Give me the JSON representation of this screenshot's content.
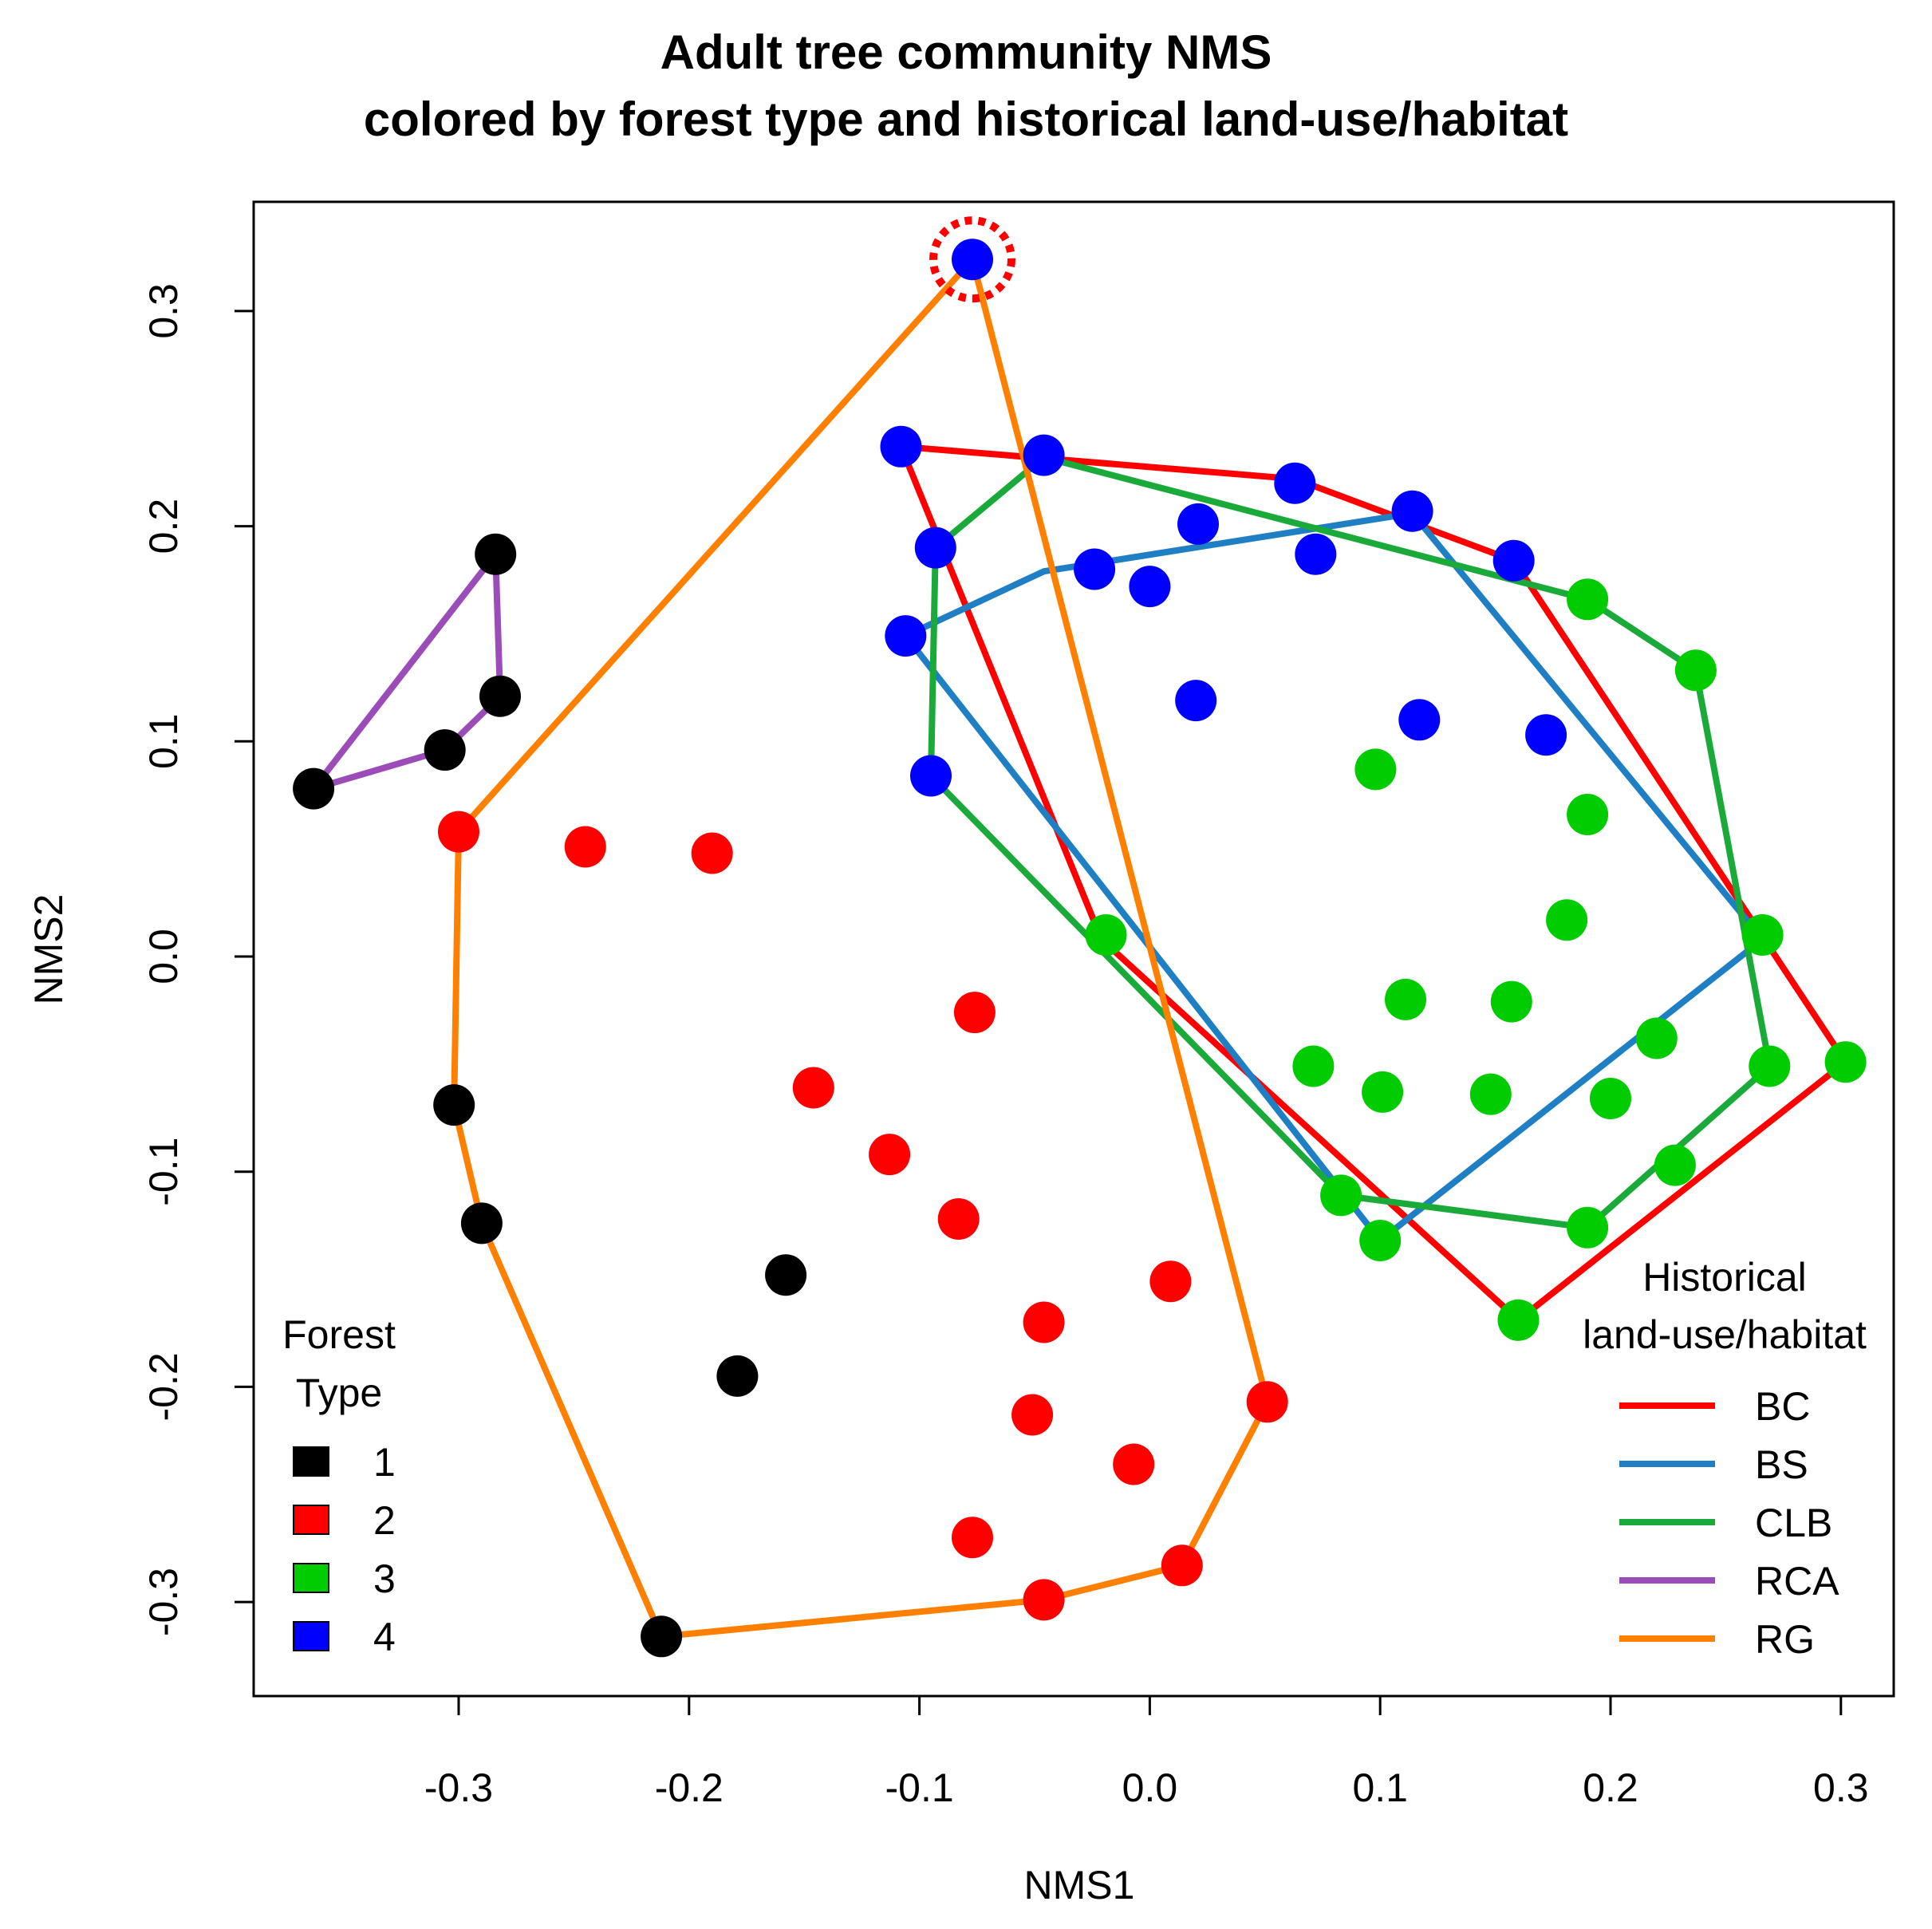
{
  "chart_data": {
    "type": "scatter",
    "title": [
      "Adult tree community NMS",
      "colored by forest type and historical land-use/habitat"
    ],
    "xlabel": "NMS1",
    "ylabel": "NMS2",
    "xlim": [
      -0.39,
      0.32
    ],
    "ylim": [
      -0.34,
      0.35
    ],
    "xticks": [
      -0.3,
      -0.2,
      -0.1,
      0.0,
      0.1,
      0.2,
      0.3
    ],
    "xtick_labels": [
      "-0.3",
      "-0.2",
      "-0.1",
      "0.0",
      "0.1",
      "0.2",
      "0.3"
    ],
    "yticks": [
      -0.3,
      -0.2,
      -0.1,
      0.0,
      0.1,
      0.2,
      0.3
    ],
    "ytick_labels": [
      "-0.3",
      "-0.2",
      "-0.1",
      "0.0",
      "0.1",
      "0.2",
      "0.3"
    ],
    "forest_type_colors": {
      "1": "#000000",
      "2": "#ff0000",
      "3": "#00cc00",
      "4": "#0000ff"
    },
    "points": [
      {
        "x": -0.363,
        "y": 0.078,
        "type": "1"
      },
      {
        "x": -0.306,
        "y": 0.096,
        "type": "1"
      },
      {
        "x": -0.284,
        "y": 0.187,
        "type": "1"
      },
      {
        "x": -0.282,
        "y": 0.121,
        "type": "1"
      },
      {
        "x": -0.302,
        "y": -0.069,
        "type": "1"
      },
      {
        "x": -0.29,
        "y": -0.124,
        "type": "1"
      },
      {
        "x": -0.158,
        "y": -0.148,
        "type": "1"
      },
      {
        "x": -0.179,
        "y": -0.195,
        "type": "1"
      },
      {
        "x": -0.212,
        "y": -0.316,
        "type": "1"
      },
      {
        "x": -0.3,
        "y": 0.058,
        "type": "2"
      },
      {
        "x": -0.245,
        "y": 0.051,
        "type": "2"
      },
      {
        "x": -0.19,
        "y": 0.048,
        "type": "2"
      },
      {
        "x": -0.076,
        "y": -0.026,
        "type": "2"
      },
      {
        "x": -0.146,
        "y": -0.061,
        "type": "2"
      },
      {
        "x": -0.113,
        "y": -0.092,
        "type": "2"
      },
      {
        "x": -0.083,
        "y": -0.122,
        "type": "2"
      },
      {
        "x": 0.009,
        "y": -0.151,
        "type": "2"
      },
      {
        "x": -0.046,
        "y": -0.17,
        "type": "2"
      },
      {
        "x": 0.051,
        "y": -0.207,
        "type": "2"
      },
      {
        "x": -0.051,
        "y": -0.213,
        "type": "2"
      },
      {
        "x": -0.007,
        "y": -0.236,
        "type": "2"
      },
      {
        "x": -0.077,
        "y": -0.27,
        "type": "2"
      },
      {
        "x": 0.014,
        "y": -0.283,
        "type": "2"
      },
      {
        "x": -0.046,
        "y": -0.299,
        "type": "2"
      },
      {
        "x": 0.19,
        "y": 0.166,
        "type": "3"
      },
      {
        "x": 0.237,
        "y": 0.133,
        "type": "3"
      },
      {
        "x": 0.098,
        "y": 0.087,
        "type": "3"
      },
      {
        "x": 0.19,
        "y": 0.066,
        "type": "3"
      },
      {
        "x": 0.181,
        "y": 0.017,
        "type": "3"
      },
      {
        "x": -0.019,
        "y": 0.01,
        "type": "3"
      },
      {
        "x": 0.266,
        "y": 0.01,
        "type": "3"
      },
      {
        "x": 0.111,
        "y": -0.02,
        "type": "3"
      },
      {
        "x": 0.157,
        "y": -0.021,
        "type": "3"
      },
      {
        "x": 0.22,
        "y": -0.038,
        "type": "3"
      },
      {
        "x": 0.071,
        "y": -0.051,
        "type": "3"
      },
      {
        "x": 0.269,
        "y": -0.051,
        "type": "3"
      },
      {
        "x": 0.302,
        "y": -0.049,
        "type": "3"
      },
      {
        "x": 0.101,
        "y": -0.063,
        "type": "3"
      },
      {
        "x": 0.148,
        "y": -0.064,
        "type": "3"
      },
      {
        "x": 0.2,
        "y": -0.066,
        "type": "3"
      },
      {
        "x": 0.228,
        "y": -0.097,
        "type": "3"
      },
      {
        "x": 0.083,
        "y": -0.111,
        "type": "3"
      },
      {
        "x": 0.19,
        "y": -0.126,
        "type": "3"
      },
      {
        "x": 0.1,
        "y": -0.132,
        "type": "3"
      },
      {
        "x": 0.16,
        "y": -0.169,
        "type": "3"
      },
      {
        "x": -0.077,
        "y": 0.324,
        "type": "4"
      },
      {
        "x": -0.108,
        "y": 0.237,
        "type": "4"
      },
      {
        "x": -0.046,
        "y": 0.233,
        "type": "4"
      },
      {
        "x": 0.063,
        "y": 0.22,
        "type": "4"
      },
      {
        "x": 0.114,
        "y": 0.207,
        "type": "4"
      },
      {
        "x": 0.021,
        "y": 0.201,
        "type": "4"
      },
      {
        "x": -0.093,
        "y": 0.19,
        "type": "4"
      },
      {
        "x": 0.072,
        "y": 0.187,
        "type": "4"
      },
      {
        "x": 0.158,
        "y": 0.184,
        "type": "4"
      },
      {
        "x": -0.024,
        "y": 0.18,
        "type": "4"
      },
      {
        "x": 0.0,
        "y": 0.172,
        "type": "4"
      },
      {
        "x": -0.106,
        "y": 0.149,
        "type": "4"
      },
      {
        "x": 0.02,
        "y": 0.119,
        "type": "4"
      },
      {
        "x": 0.117,
        "y": 0.11,
        "type": "4"
      },
      {
        "x": 0.172,
        "y": 0.103,
        "type": "4"
      },
      {
        "x": -0.095,
        "y": 0.084,
        "type": "4"
      }
    ],
    "highlighted_point": {
      "x": -0.077,
      "y": 0.324,
      "color": "#ff0000"
    },
    "hulls": [
      {
        "name": "BC",
        "color": "#ff0000",
        "points": [
          [
            -0.108,
            0.237
          ],
          [
            0.063,
            0.222
          ],
          [
            0.158,
            0.184
          ],
          [
            0.302,
            -0.049
          ],
          [
            0.16,
            -0.169
          ],
          [
            -0.021,
            0.008
          ],
          [
            -0.108,
            0.237
          ]
        ]
      },
      {
        "name": "BS",
        "color": "#1f7fc4",
        "points": [
          [
            -0.106,
            0.149
          ],
          [
            -0.046,
            0.179
          ],
          [
            0.114,
            0.206
          ],
          [
            0.266,
            0.008
          ],
          [
            0.1,
            -0.132
          ],
          [
            -0.106,
            0.149
          ]
        ]
      },
      {
        "name": "CLB",
        "color": "#1aaa3a",
        "points": [
          [
            -0.046,
            0.232
          ],
          [
            0.19,
            0.166
          ],
          [
            0.237,
            0.133
          ],
          [
            0.269,
            -0.051
          ],
          [
            0.19,
            -0.126
          ],
          [
            0.083,
            -0.111
          ],
          [
            -0.095,
            0.084
          ],
          [
            -0.093,
            0.19
          ],
          [
            -0.046,
            0.232
          ]
        ]
      },
      {
        "name": "RCA",
        "color": "#9b4cb8",
        "points": [
          [
            -0.363,
            0.078
          ],
          [
            -0.284,
            0.187
          ],
          [
            -0.282,
            0.121
          ],
          [
            -0.306,
            0.096
          ],
          [
            -0.363,
            0.078
          ]
        ]
      },
      {
        "name": "RG",
        "color": "#ff8000",
        "points": [
          [
            -0.077,
            0.324
          ],
          [
            0.051,
            -0.207
          ],
          [
            0.014,
            -0.283
          ],
          [
            -0.046,
            -0.299
          ],
          [
            -0.212,
            -0.316
          ],
          [
            -0.29,
            -0.124
          ],
          [
            -0.302,
            -0.069
          ],
          [
            -0.3,
            0.058
          ],
          [
            -0.077,
            0.324
          ]
        ]
      }
    ],
    "legend_forest_type": {
      "title": [
        "Forest",
        "Type"
      ],
      "entries": [
        {
          "label": "1",
          "color": "#000000"
        },
        {
          "label": "2",
          "color": "#ff0000"
        },
        {
          "label": "3",
          "color": "#00cc00"
        },
        {
          "label": "4",
          "color": "#0000ff"
        }
      ],
      "placement": "bottom-left"
    },
    "legend_land_use": {
      "title": [
        "Historical",
        "land-use/habitat"
      ],
      "entries": [
        {
          "label": "BC",
          "color": "#ff0000"
        },
        {
          "label": "BS",
          "color": "#1f7fc4"
        },
        {
          "label": "CLB",
          "color": "#1aaa3a"
        },
        {
          "label": "RCA",
          "color": "#9b4cb8"
        },
        {
          "label": "RG",
          "color": "#ff8000"
        }
      ],
      "placement": "bottom-right"
    }
  }
}
